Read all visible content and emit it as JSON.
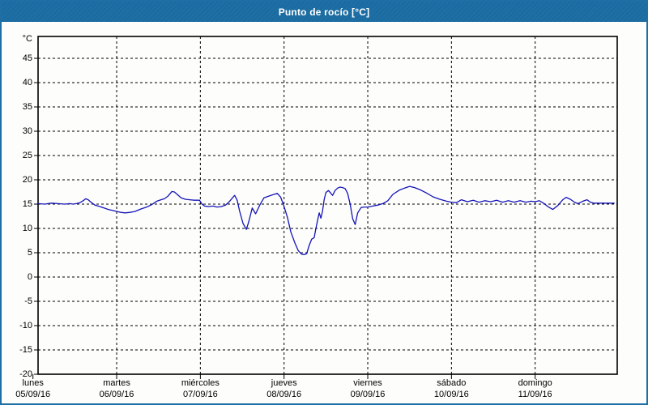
{
  "window": {
    "title": "Punto de rocío [°C]",
    "title_bar_color": "#1d6fa5",
    "border_color": "#1d6fa5",
    "background": "#fdfdfb"
  },
  "chart_data": {
    "type": "line",
    "title": "Punto de rocío [°C]",
    "ylabel": "°C",
    "unit_label": "°C",
    "ylim": [
      -20,
      50
    ],
    "yticks": [
      45,
      40,
      35,
      30,
      25,
      20,
      15,
      10,
      5,
      0,
      -5,
      -10,
      -15,
      -20
    ],
    "grid": "dashed",
    "legend": "none",
    "line_color": "#1414b8",
    "axis_color": "#000000",
    "xlim_days": [
      0,
      7
    ],
    "x_gridline_days": [
      1,
      2,
      3,
      4,
      5,
      6
    ],
    "x_days": [
      {
        "name": "lunes",
        "date": "05/09/16",
        "day_index": 0
      },
      {
        "name": "martes",
        "date": "06/09/16",
        "day_index": 1
      },
      {
        "name": "miércoles",
        "date": "07/09/16",
        "day_index": 2
      },
      {
        "name": "jueves",
        "date": "08/09/16",
        "day_index": 3
      },
      {
        "name": "viernes",
        "date": "09/09/16",
        "day_index": 4
      },
      {
        "name": "sábado",
        "date": "10/09/16",
        "day_index": 5
      },
      {
        "name": "domingo",
        "date": "11/09/16",
        "day_index": 6
      }
    ],
    "series": [
      {
        "name": "Punto de rocío",
        "x_unit": "days since 05/09/16 00:00",
        "points": [
          [
            0.06,
            15.1
          ],
          [
            0.14,
            15.0
          ],
          [
            0.22,
            15.2
          ],
          [
            0.3,
            15.1
          ],
          [
            0.38,
            15.0
          ],
          [
            0.44,
            15.1
          ],
          [
            0.48,
            15.0
          ],
          [
            0.52,
            15.1
          ],
          [
            0.56,
            15.3
          ],
          [
            0.6,
            15.7
          ],
          [
            0.63,
            16.1
          ],
          [
            0.66,
            15.9
          ],
          [
            0.7,
            15.3
          ],
          [
            0.74,
            14.8
          ],
          [
            0.8,
            14.5
          ],
          [
            0.85,
            14.2
          ],
          [
            0.9,
            13.9
          ],
          [
            0.95,
            13.7
          ],
          [
            1.0,
            13.5
          ],
          [
            1.05,
            13.3
          ],
          [
            1.1,
            13.2
          ],
          [
            1.16,
            13.3
          ],
          [
            1.22,
            13.5
          ],
          [
            1.29,
            14.0
          ],
          [
            1.36,
            14.4
          ],
          [
            1.42,
            14.9
          ],
          [
            1.48,
            15.6
          ],
          [
            1.53,
            15.9
          ],
          [
            1.57,
            16.1
          ],
          [
            1.61,
            16.6
          ],
          [
            1.64,
            17.2
          ],
          [
            1.66,
            17.6
          ],
          [
            1.69,
            17.5
          ],
          [
            1.73,
            16.9
          ],
          [
            1.77,
            16.3
          ],
          [
            1.82,
            16.0
          ],
          [
            1.87,
            15.9
          ],
          [
            1.93,
            15.8
          ],
          [
            1.99,
            15.8
          ],
          [
            2.02,
            15.0
          ],
          [
            2.05,
            14.6
          ],
          [
            2.1,
            14.5
          ],
          [
            2.15,
            14.6
          ],
          [
            2.2,
            14.4
          ],
          [
            2.25,
            14.5
          ],
          [
            2.3,
            14.8
          ],
          [
            2.34,
            15.4
          ],
          [
            2.38,
            16.2
          ],
          [
            2.41,
            16.8
          ],
          [
            2.44,
            15.8
          ],
          [
            2.47,
            13.5
          ],
          [
            2.51,
            11.0
          ],
          [
            2.55,
            9.8
          ],
          [
            2.58,
            11.5
          ],
          [
            2.62,
            14.2
          ],
          [
            2.66,
            13.0
          ],
          [
            2.71,
            14.8
          ],
          [
            2.76,
            16.3
          ],
          [
            2.81,
            16.6
          ],
          [
            2.86,
            16.9
          ],
          [
            2.92,
            17.2
          ],
          [
            2.96,
            16.4
          ],
          [
            3.0,
            14.5
          ],
          [
            3.04,
            12.3
          ],
          [
            3.08,
            9.3
          ],
          [
            3.13,
            7.0
          ],
          [
            3.17,
            5.4
          ],
          [
            3.21,
            4.7
          ],
          [
            3.24,
            4.6
          ],
          [
            3.27,
            4.8
          ],
          [
            3.3,
            6.5
          ],
          [
            3.33,
            7.8
          ],
          [
            3.36,
            8.1
          ],
          [
            3.38,
            10.0
          ],
          [
            3.4,
            11.6
          ],
          [
            3.42,
            13.2
          ],
          [
            3.44,
            12.1
          ],
          [
            3.46,
            13.6
          ],
          [
            3.48,
            16.0
          ],
          [
            3.5,
            17.4
          ],
          [
            3.53,
            17.8
          ],
          [
            3.56,
            17.2
          ],
          [
            3.58,
            16.8
          ],
          [
            3.61,
            17.8
          ],
          [
            3.64,
            18.3
          ],
          [
            3.67,
            18.5
          ],
          [
            3.7,
            18.4
          ],
          [
            3.73,
            18.2
          ],
          [
            3.76,
            17.2
          ],
          [
            3.79,
            15.0
          ],
          [
            3.82,
            12.0
          ],
          [
            3.85,
            10.8
          ],
          [
            3.88,
            13.2
          ],
          [
            3.92,
            14.3
          ],
          [
            3.96,
            14.4
          ],
          [
            4.0,
            14.4
          ],
          [
            4.06,
            14.6
          ],
          [
            4.12,
            14.8
          ],
          [
            4.18,
            15.1
          ],
          [
            4.24,
            15.7
          ],
          [
            4.3,
            17.0
          ],
          [
            4.38,
            17.9
          ],
          [
            4.44,
            18.3
          ],
          [
            4.5,
            18.65
          ],
          [
            4.56,
            18.4
          ],
          [
            4.62,
            18.0
          ],
          [
            4.7,
            17.3
          ],
          [
            4.78,
            16.5
          ],
          [
            4.86,
            16.0
          ],
          [
            4.94,
            15.6
          ],
          [
            5.0,
            15.4
          ],
          [
            5.06,
            15.3
          ],
          [
            5.12,
            15.9
          ],
          [
            5.19,
            15.5
          ],
          [
            5.26,
            15.8
          ],
          [
            5.33,
            15.4
          ],
          [
            5.4,
            15.7
          ],
          [
            5.47,
            15.5
          ],
          [
            5.54,
            15.8
          ],
          [
            5.61,
            15.4
          ],
          [
            5.68,
            15.7
          ],
          [
            5.75,
            15.4
          ],
          [
            5.82,
            15.7
          ],
          [
            5.89,
            15.4
          ],
          [
            5.95,
            15.6
          ],
          [
            6.0,
            15.5
          ],
          [
            6.05,
            15.7
          ],
          [
            6.1,
            15.2
          ],
          [
            6.16,
            14.4
          ],
          [
            6.21,
            13.9
          ],
          [
            6.27,
            14.7
          ],
          [
            6.33,
            15.9
          ],
          [
            6.37,
            16.4
          ],
          [
            6.42,
            16.0
          ],
          [
            6.47,
            15.4
          ],
          [
            6.51,
            15.1
          ],
          [
            6.57,
            15.6
          ],
          [
            6.62,
            15.9
          ],
          [
            6.66,
            15.4
          ],
          [
            6.7,
            15.2
          ],
          [
            6.78,
            15.2
          ],
          [
            6.86,
            15.2
          ],
          [
            6.95,
            15.2
          ]
        ]
      }
    ]
  }
}
